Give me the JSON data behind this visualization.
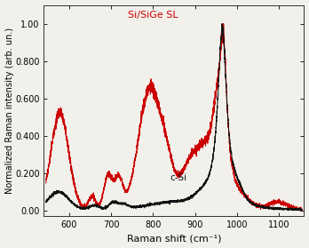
{
  "xlabel": "Raman shift (cm⁻¹)",
  "ylabel": "Normalized Raman intensity (arb. un.)",
  "xlim": [
    540,
    1160
  ],
  "ylim": [
    -0.03,
    1.1
  ],
  "xticks": [
    600,
    700,
    800,
    900,
    1000,
    1100
  ],
  "yticks": [
    0.0,
    0.2,
    0.4,
    0.6,
    0.8,
    1.0
  ],
  "ytick_labels": [
    "0.00",
    "0.200",
    "0.400",
    "0.600",
    "0.800",
    "1.00"
  ],
  "label_si_sige": "Si/SiGe SL",
  "label_csi": "c-Si",
  "color_red": "#cc0000",
  "color_black": "#111111",
  "background": "#f2f0eb",
  "linewidth": 0.75
}
